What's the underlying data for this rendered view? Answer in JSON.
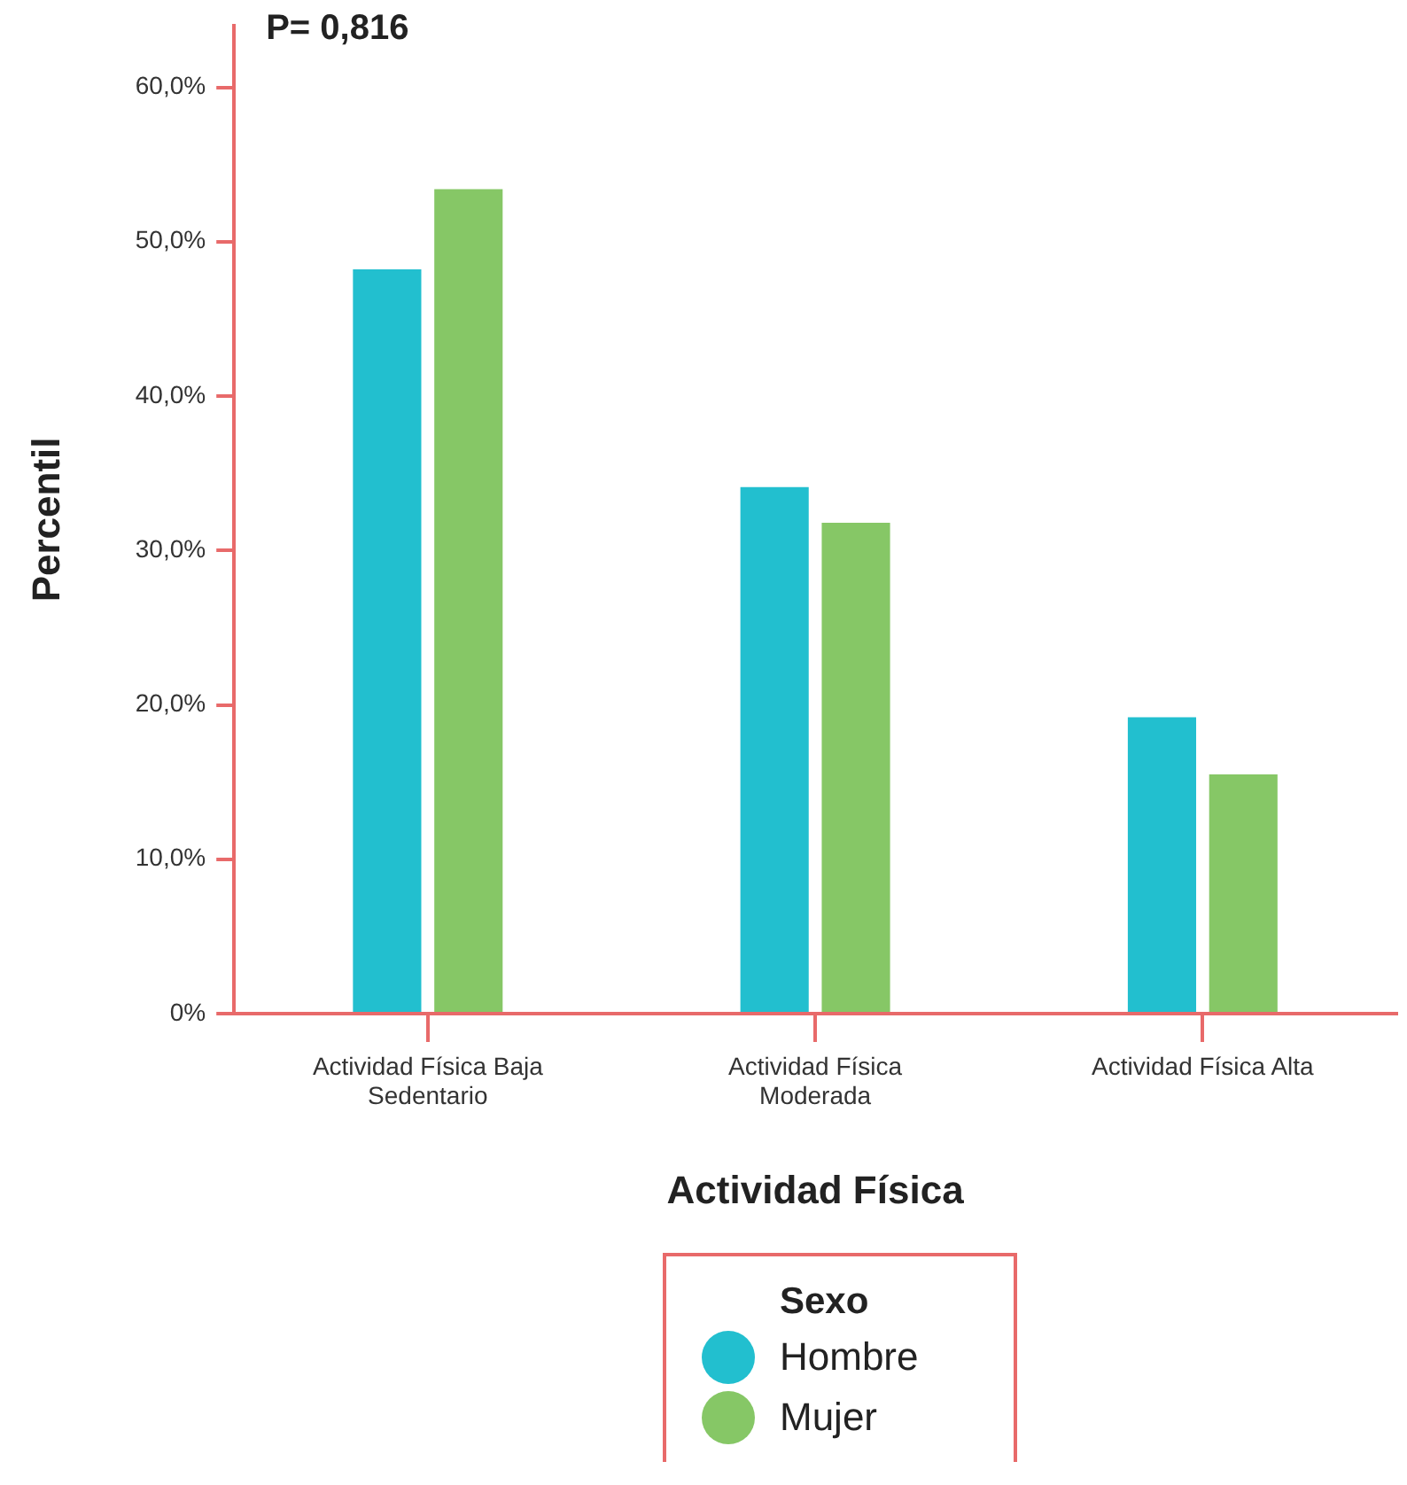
{
  "chart_data": {
    "type": "bar",
    "xlabel": "Actividad Física",
    "ylabel": "Percentil",
    "legend_title": "Sexo",
    "legend": "bottom",
    "grid": false,
    "categories": [
      "Actividad Física Baja Sedentario",
      "Actividad Física Moderada",
      "Actividad Física Alta"
    ],
    "series": [
      {
        "name": "Hombre",
        "color": "#22bfcf",
        "values": [
          48.2,
          34.1,
          19.2
        ]
      },
      {
        "name": "Mujer",
        "color": "#86c766",
        "values": [
          53.4,
          31.8,
          15.5
        ]
      }
    ],
    "ylim": [
      0,
      64
    ],
    "yticks": [
      {
        "value": 0,
        "label": "0%"
      },
      {
        "value": 10,
        "label": "10,0%"
      },
      {
        "value": 20,
        "label": "20,0%"
      },
      {
        "value": 30,
        "label": "30,0%"
      },
      {
        "value": 40,
        "label": "40,0%"
      },
      {
        "value": 50,
        "label": "50,0%"
      },
      {
        "value": 60,
        "label": "60,0%"
      }
    ],
    "annotations": [
      "P= 0,816"
    ]
  }
}
